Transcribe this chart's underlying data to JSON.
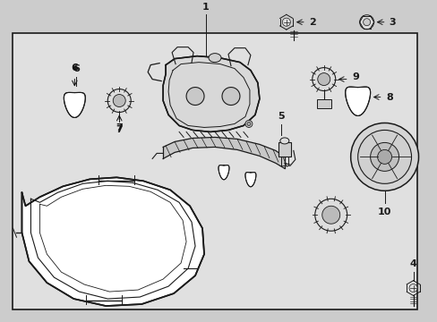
{
  "bg_color": "#e8e8e8",
  "line_color": "#1a1a1a",
  "fig_w": 4.89,
  "fig_h": 3.6,
  "dpi": 100
}
